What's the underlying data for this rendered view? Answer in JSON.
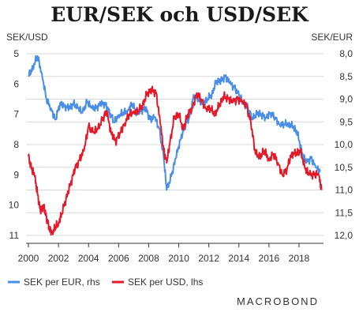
{
  "chart_data": {
    "type": "line",
    "title": "EUR/SEK och USD/SEK",
    "left_axis_label": "SEK/USD",
    "right_axis_label": "SEK/EUR",
    "left_ylim": [
      11,
      5
    ],
    "right_ylim": [
      12.0,
      8.0
    ],
    "left_ticks": [
      "5",
      "6",
      "7",
      "8",
      "9",
      "10",
      "11"
    ],
    "right_ticks": [
      "8,0",
      "8,5",
      "9,0",
      "9,5",
      "10,0",
      "10,5",
      "11,0",
      "11,5",
      "12,0"
    ],
    "x_ticks": [
      "2000",
      "2002",
      "2004",
      "2006",
      "2008",
      "2010",
      "2012",
      "2014",
      "2016",
      "2018"
    ],
    "xlim": [
      2000,
      2019.7
    ],
    "inverted_y": true,
    "grid": "horizontal",
    "legend_position": "bottom-left",
    "brand": "MACROBOND",
    "series": [
      {
        "name": "SEK per EUR, rhs",
        "axis": "right",
        "color": "#4a8fe7",
        "x": [
          2000.0,
          2000.3,
          2000.6,
          2000.9,
          2001.2,
          2001.5,
          2001.8,
          2002.1,
          2002.4,
          2002.7,
          2003.0,
          2003.3,
          2003.6,
          2003.9,
          2004.2,
          2004.5,
          2004.8,
          2005.1,
          2005.4,
          2005.7,
          2006.0,
          2006.3,
          2006.6,
          2006.9,
          2007.2,
          2007.5,
          2007.8,
          2008.1,
          2008.4,
          2008.7,
          2009.0,
          2009.2,
          2009.5,
          2009.8,
          2010.1,
          2010.4,
          2010.7,
          2011.0,
          2011.3,
          2011.6,
          2011.9,
          2012.2,
          2012.5,
          2012.8,
          2013.1,
          2013.4,
          2013.7,
          2014.0,
          2014.3,
          2014.6,
          2014.9,
          2015.2,
          2015.5,
          2015.8,
          2016.1,
          2016.4,
          2016.7,
          2017.0,
          2017.3,
          2017.6,
          2017.9,
          2018.2,
          2018.5,
          2018.8,
          2019.1,
          2019.4
        ],
        "values": [
          8.5,
          8.3,
          8.05,
          8.45,
          9.0,
          9.2,
          9.45,
          9.1,
          9.15,
          9.2,
          9.1,
          9.2,
          9.3,
          9.05,
          9.2,
          9.2,
          9.1,
          9.1,
          9.3,
          9.5,
          9.35,
          9.3,
          9.25,
          9.1,
          9.3,
          9.25,
          9.2,
          9.45,
          9.4,
          9.65,
          10.3,
          11.0,
          10.7,
          10.3,
          9.9,
          9.6,
          9.4,
          8.9,
          9.0,
          9.1,
          9.0,
          8.9,
          8.6,
          8.6,
          8.5,
          8.65,
          8.75,
          8.9,
          9.1,
          9.2,
          9.45,
          9.3,
          9.35,
          9.4,
          9.3,
          9.4,
          9.55,
          9.55,
          9.55,
          9.6,
          9.75,
          10.2,
          10.4,
          10.3,
          10.5,
          10.6
        ]
      },
      {
        "name": "SEK per USD, lhs",
        "axis": "left",
        "color": "#e21a2a",
        "x": [
          2000.0,
          2000.2,
          2000.4,
          2000.6,
          2000.8,
          2001.0,
          2001.2,
          2001.4,
          2001.6,
          2001.8,
          2002.0,
          2002.2,
          2002.5,
          2002.8,
          2003.1,
          2003.4,
          2003.7,
          2004.0,
          2004.3,
          2004.6,
          2004.9,
          2005.2,
          2005.5,
          2005.8,
          2006.1,
          2006.4,
          2006.7,
          2007.0,
          2007.3,
          2007.6,
          2007.9,
          2008.2,
          2008.5,
          2008.8,
          2009.0,
          2009.2,
          2009.4,
          2009.7,
          2010.0,
          2010.3,
          2010.6,
          2010.9,
          2011.2,
          2011.5,
          2011.8,
          2012.1,
          2012.4,
          2012.7,
          2013.0,
          2013.3,
          2013.6,
          2013.9,
          2014.2,
          2014.5,
          2014.8,
          2015.1,
          2015.4,
          2015.7,
          2016.0,
          2016.3,
          2016.6,
          2016.9,
          2017.2,
          2017.5,
          2017.8,
          2018.1,
          2018.4,
          2018.7,
          2019.0,
          2019.3,
          2019.5
        ],
        "values": [
          8.4,
          8.8,
          9.0,
          9.6,
          10.2,
          10.0,
          10.4,
          10.8,
          10.9,
          10.7,
          10.6,
          10.3,
          9.8,
          9.3,
          8.8,
          8.5,
          8.2,
          7.4,
          7.6,
          7.5,
          7.2,
          6.9,
          7.6,
          7.9,
          7.6,
          7.3,
          7.0,
          6.9,
          6.9,
          6.7,
          6.3,
          6.2,
          6.3,
          7.4,
          8.2,
          8.6,
          8.0,
          7.1,
          7.0,
          7.5,
          7.0,
          6.8,
          6.3,
          6.5,
          6.8,
          6.8,
          7.0,
          6.7,
          6.4,
          6.5,
          6.6,
          6.5,
          6.6,
          6.7,
          7.3,
          8.3,
          8.4,
          8.2,
          8.5,
          8.3,
          8.6,
          9.0,
          8.8,
          8.3,
          8.3,
          8.2,
          8.8,
          9.0,
          9.0,
          9.0,
          9.5
        ]
      }
    ]
  }
}
